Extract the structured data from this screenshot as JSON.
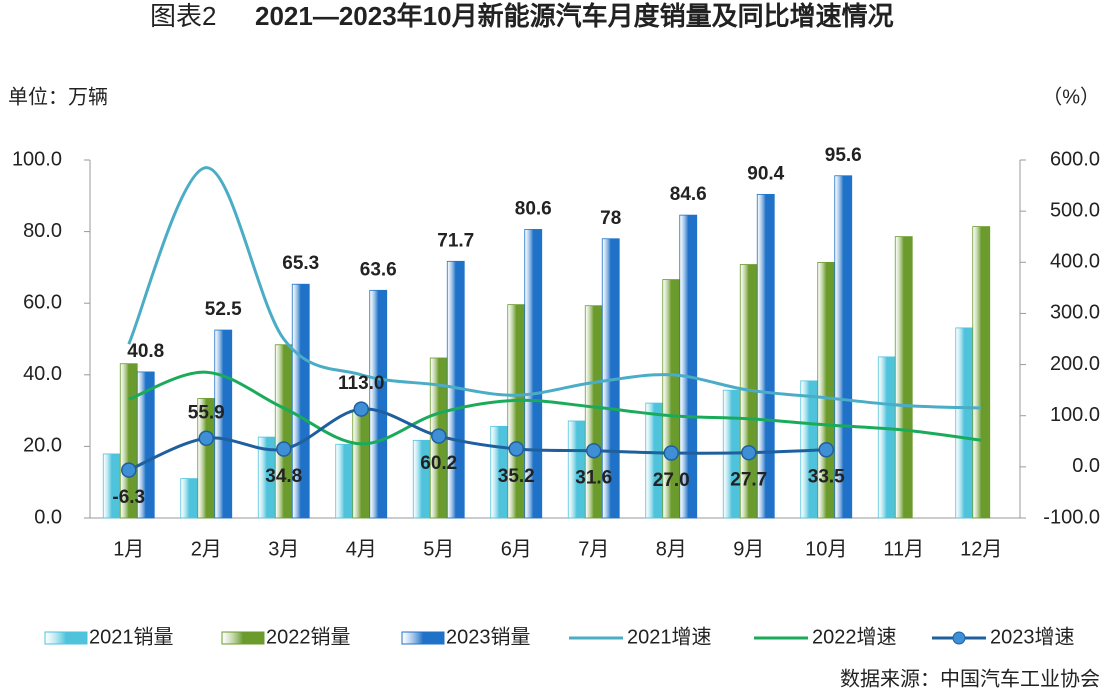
{
  "chart_data": {
    "type": "bar",
    "figure_label": "图表2",
    "title": "2021—2023年10月新能源汽车月度销量及同比增速情况",
    "y_axis_label": "单位：万辆",
    "y2_axis_label": "（%）",
    "source": "数据来源：中国汽车工业协会",
    "categories": [
      "1月",
      "2月",
      "3月",
      "4月",
      "5月",
      "6月",
      "7月",
      "8月",
      "9月",
      "10月",
      "11月",
      "12月"
    ],
    "ylim": [
      0,
      100
    ],
    "yticks": [
      {
        "value": 0,
        "label": "0.0"
      },
      {
        "value": 20,
        "label": "20.0"
      },
      {
        "value": 40,
        "label": "40.0"
      },
      {
        "value": 60,
        "label": "60.0"
      },
      {
        "value": 80,
        "label": "80.0"
      },
      {
        "value": 100,
        "label": "100.0"
      }
    ],
    "y2lim": [
      -100,
      600
    ],
    "y2ticks": [
      {
        "value": -100,
        "label": "-100.0"
      },
      {
        "value": 0,
        "label": "0.0"
      },
      {
        "value": 100,
        "label": "100.0"
      },
      {
        "value": 200,
        "label": "200.0"
      },
      {
        "value": 300,
        "label": "300.0"
      },
      {
        "value": 400,
        "label": "400.0"
      },
      {
        "value": 500,
        "label": "500.0"
      },
      {
        "value": 600,
        "label": "600.0"
      }
    ],
    "grid": false,
    "legend": "bottom",
    "series": [
      {
        "name": "2021销量",
        "type": "bar",
        "color": "#4fc3dc",
        "values": [
          17.9,
          11.0,
          22.6,
          20.6,
          21.7,
          25.6,
          27.1,
          32.1,
          35.7,
          38.3,
          45.0,
          53.1
        ]
      },
      {
        "name": "2022销量",
        "type": "bar",
        "color": "#6b9b2c",
        "values": [
          43.1,
          33.4,
          48.4,
          29.9,
          44.7,
          59.6,
          59.3,
          66.6,
          70.8,
          71.4,
          78.6,
          81.4
        ]
      },
      {
        "name": "2023销量",
        "type": "bar",
        "color": "#1f72c8",
        "values": [
          40.8,
          52.5,
          65.3,
          63.6,
          71.7,
          80.6,
          78.0,
          84.6,
          90.4,
          95.6,
          null,
          null
        ],
        "label_color": "#2323b8"
      },
      {
        "name": "2021增速",
        "type": "line",
        "axis": "y2",
        "color": "#4bacc6",
        "values": [
          240,
          585,
          250,
          180,
          160,
          140,
          165,
          180,
          150,
          135,
          120,
          115
        ]
      },
      {
        "name": "2022增速",
        "type": "line",
        "axis": "y2",
        "color": "#1aab5a",
        "values": [
          132,
          185,
          115,
          45,
          105,
          130,
          117,
          100,
          94,
          82,
          72,
          52
        ]
      },
      {
        "name": "2023增速",
        "type": "line",
        "axis": "y2",
        "color": "#1f5f9e",
        "marker": true,
        "values": [
          -6.3,
          55.9,
          34.8,
          113.0,
          60.2,
          35.2,
          31.6,
          27.0,
          27.7,
          33.5,
          null,
          null
        ],
        "value_labels": [
          "-6.3",
          "55.9",
          "34.8",
          "113.0",
          "60.2",
          "35.2",
          "31.6",
          "27.0",
          "27.7",
          "33.5",
          null,
          null
        ]
      }
    ]
  }
}
